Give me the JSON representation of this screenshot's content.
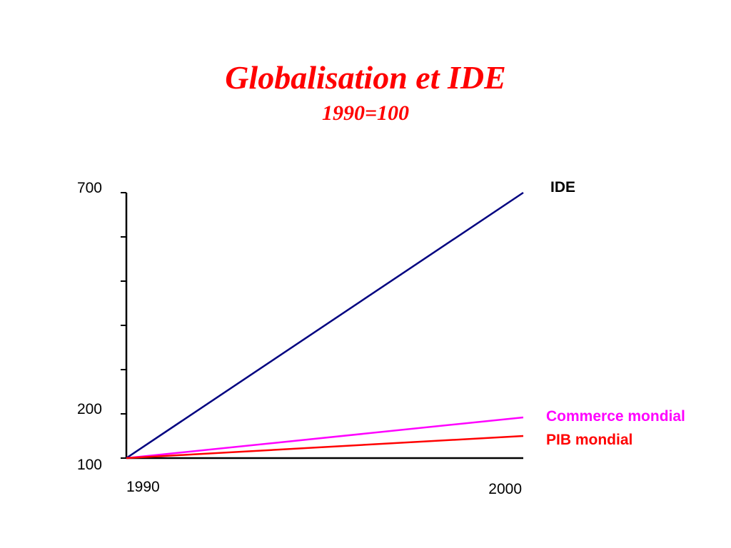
{
  "chart_data": {
    "type": "line",
    "title": "Globalisation et IDE",
    "subtitle": "1990=100",
    "x": [
      1990,
      2000
    ],
    "x_tick_labels": [
      "1990",
      "2000"
    ],
    "y_tick_labels": [
      "700",
      "200",
      "100"
    ],
    "y_tick_values": [
      700,
      200,
      100
    ],
    "ylim": [
      100,
      700
    ],
    "y_minor_ticks": [
      100,
      200,
      300,
      400,
      500,
      600,
      700
    ],
    "grid": false,
    "series": [
      {
        "name": "IDE",
        "values": [
          100,
          700
        ],
        "color": "#000080"
      },
      {
        "name": "Commerce mondial",
        "values": [
          100,
          192
        ],
        "color": "#ff00ff"
      },
      {
        "name": "PIB mondial",
        "values": [
          100,
          150
        ],
        "color": "#ff0000"
      }
    ]
  }
}
